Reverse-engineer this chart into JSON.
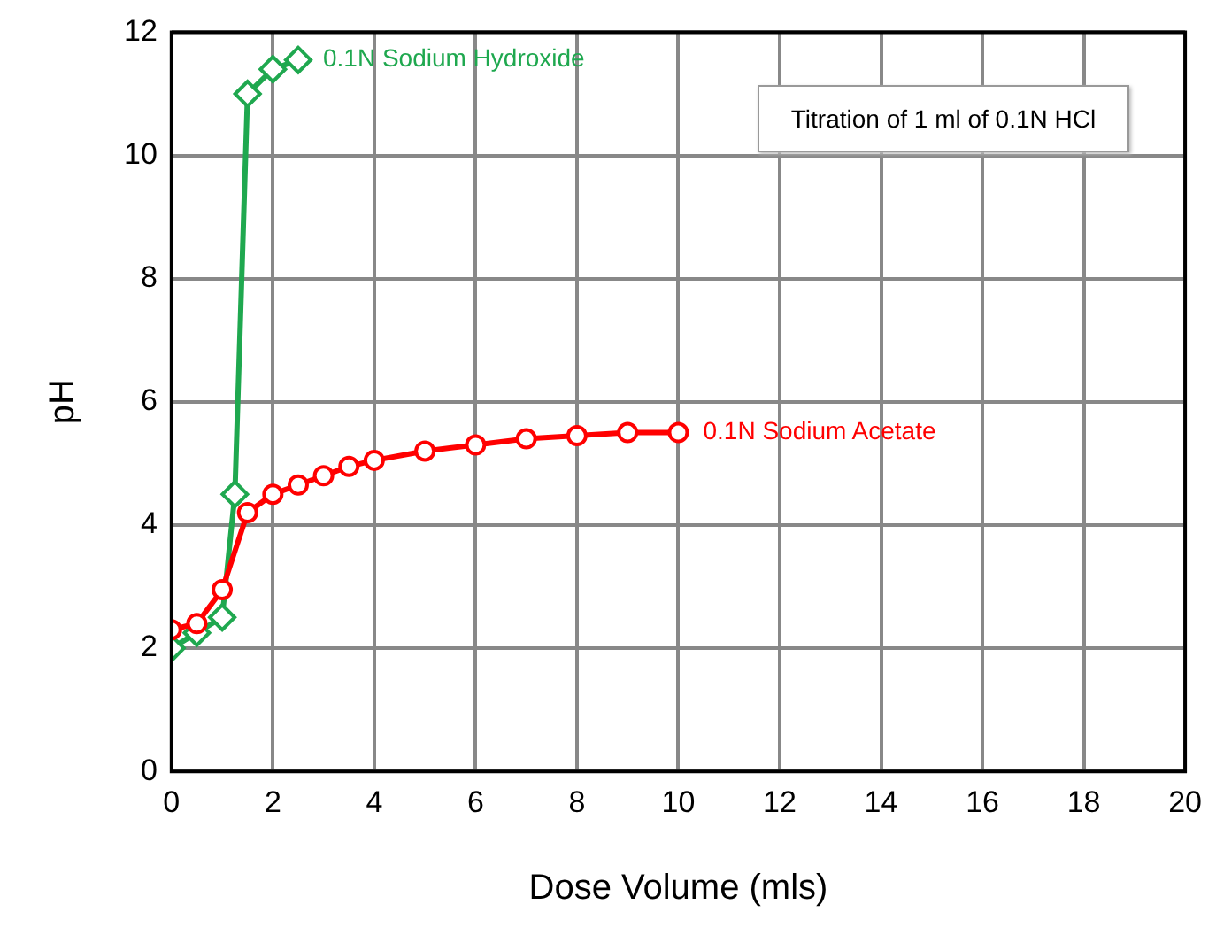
{
  "chart_data": {
    "type": "line",
    "xlabel": "Dose Volume (mls)",
    "ylabel": "pH",
    "annotations": [
      "Titration of 1 ml of 0.1N HCl"
    ],
    "xlim": [
      0,
      20
    ],
    "xticks": [
      0,
      2,
      4,
      6,
      8,
      10,
      12,
      14,
      16,
      18,
      20
    ],
    "ylim": [
      0,
      12
    ],
    "yticks": [
      0,
      2,
      4,
      6,
      8,
      10,
      12
    ],
    "grid": true,
    "legend": false,
    "line_style": "solid",
    "series": [
      {
        "name": "0.1N Sodium Acetate",
        "color": "#ff0000",
        "marker": "circle",
        "x": [
          0,
          0.5,
          1,
          1.5,
          2,
          2.5,
          3,
          3.5,
          4,
          5,
          6,
          7,
          8,
          9,
          10
        ],
        "values": [
          2.3,
          2.4,
          2.95,
          4.2,
          4.5,
          4.65,
          4.8,
          4.95,
          5.05,
          5.2,
          5.3,
          5.4,
          5.45,
          5.5,
          5.5
        ]
      },
      {
        "name": "0.1N Sodium Hydroxide",
        "color": "#1fa84f",
        "marker": "diamond",
        "x": [
          0,
          0.5,
          1,
          1.25,
          1.5,
          2,
          2.5
        ],
        "values": [
          2,
          2.25,
          2.5,
          4.5,
          11,
          11.4,
          11.55
        ]
      }
    ]
  }
}
